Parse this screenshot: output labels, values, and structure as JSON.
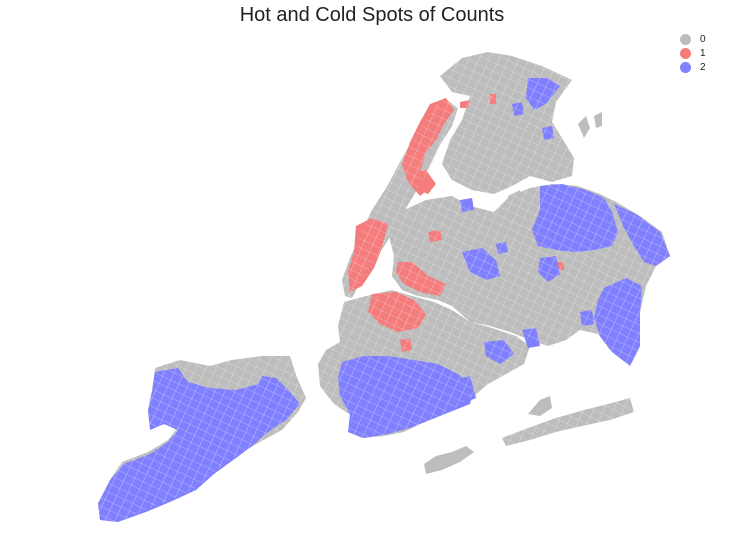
{
  "title": "Hot and Cold Spots of Counts",
  "legend": [
    {
      "label": "0",
      "color": "#bdbdbd"
    },
    {
      "label": "1",
      "color": "#f47c7c"
    },
    {
      "label": "2",
      "color": "#8080ff"
    }
  ],
  "colors": {
    "category_0": "#bdbdbd",
    "category_1": "#f47c7c",
    "category_2": "#8080ff",
    "boundary": "#ffffff"
  }
}
